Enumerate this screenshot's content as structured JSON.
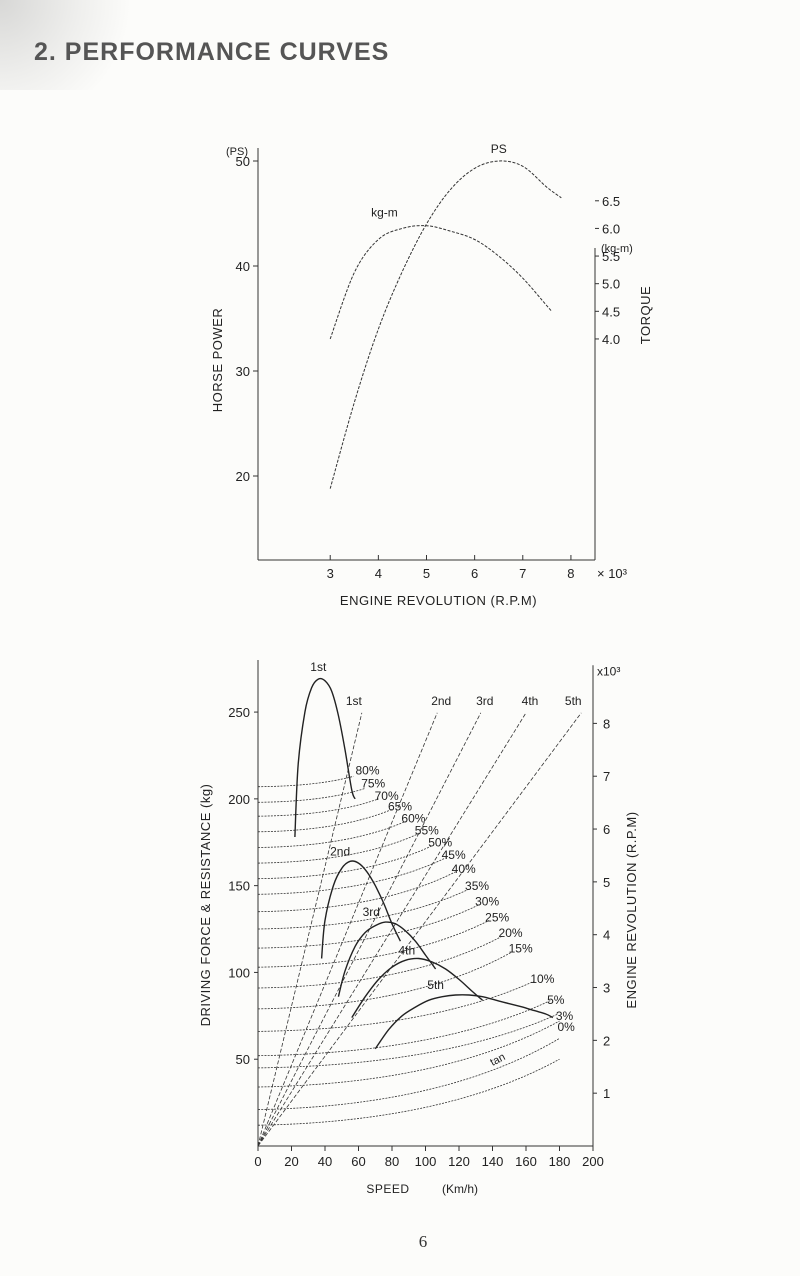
{
  "page": {
    "title": "2. PERFORMANCE CURVES",
    "page_number": "6"
  },
  "chart_data": [
    {
      "type": "line",
      "title": "",
      "xlabel": "ENGINE REVOLUTION (R.P.M)",
      "x_ticks": [
        "3",
        "4",
        "5",
        "6",
        "7",
        "8"
      ],
      "x_multiplier": "× 10³",
      "xlim": [
        1.5,
        8.5
      ],
      "ylabel_left": "HORSE POWER",
      "unit_left": "(PS)",
      "y_ticks_left": [
        "50",
        "40",
        "30",
        "20"
      ],
      "ylim_left": [
        12,
        52
      ],
      "ylabel_right": "TORQUE",
      "unit_right": "(kg-m)",
      "y_ticks_right": [
        "6.5",
        "6.0",
        "5.5",
        "5.0",
        "4.5",
        "4.0"
      ],
      "ylim_right": [
        0.0,
        7.6
      ],
      "grid": false,
      "series": [
        {
          "name": "PS",
          "axis": "left",
          "x": [
            3.0,
            3.5,
            4.0,
            4.5,
            5.0,
            5.5,
            6.0,
            6.5,
            7.0,
            7.5,
            7.8
          ],
          "y": [
            18.8,
            27.0,
            34.0,
            39.5,
            44.0,
            47.3,
            49.3,
            50.0,
            49.5,
            47.5,
            46.5
          ]
        },
        {
          "name": "kg-m",
          "axis": "right",
          "x": [
            3.0,
            3.5,
            4.0,
            4.5,
            5.0,
            5.5,
            6.0,
            6.5,
            7.0,
            7.5,
            7.6
          ],
          "y": [
            4.0,
            5.2,
            5.8,
            6.0,
            6.05,
            5.95,
            5.8,
            5.5,
            5.1,
            4.6,
            4.5
          ]
        }
      ]
    },
    {
      "type": "line",
      "title": "",
      "xlabel": "SPEED",
      "xunit": "(Km/h)",
      "x_ticks": [
        "0",
        "20",
        "40",
        "60",
        "80",
        "100",
        "120",
        "140",
        "160",
        "180",
        "200"
      ],
      "xlim": [
        0,
        200
      ],
      "ylabel_left": "DRIVING FORCE & RESISTANCE (kg)",
      "y_ticks_left": [
        "50",
        "100",
        "150",
        "200",
        "250"
      ],
      "ylim_left": [
        0,
        280
      ],
      "ylabel_right": "ENGINE REVOLUTION (R.P.M)",
      "y_ticks_right": [
        "1",
        "2",
        "3",
        "4",
        "5",
        "6",
        "7",
        "8"
      ],
      "right_multiplier": "x10³",
      "ylim_right": [
        0,
        9.2
      ],
      "grid": false,
      "driving_force_curves": [
        {
          "name": "1st",
          "x": [
            22,
            24,
            28,
            32,
            36,
            40,
            44,
            48,
            52,
            56,
            58
          ],
          "y": [
            178,
            220,
            250,
            264,
            269,
            268,
            262,
            248,
            228,
            205,
            200
          ]
        },
        {
          "name": "2nd",
          "x": [
            38,
            40,
            45,
            50,
            55,
            60,
            65,
            70,
            75,
            80,
            85
          ],
          "y": [
            108,
            130,
            150,
            160,
            164,
            163,
            158,
            150,
            140,
            128,
            118
          ]
        },
        {
          "name": "3rd",
          "x": [
            48,
            52,
            58,
            64,
            70,
            76,
            82,
            88,
            94,
            100,
            106
          ],
          "y": [
            86,
            101,
            115,
            123,
            127,
            129,
            128,
            124,
            118,
            110,
            102
          ]
        },
        {
          "name": "4th",
          "x": [
            56,
            64,
            72,
            80,
            88,
            96,
            104,
            112,
            120,
            128,
            134
          ],
          "y": [
            74,
            86,
            96,
            103,
            107,
            108,
            106,
            102,
            96,
            89,
            84
          ]
        },
        {
          "name": "5th",
          "x": [
            70,
            78,
            86,
            94,
            102,
            110,
            118,
            126,
            134,
            142,
            150,
            158,
            165,
            172,
            176
          ],
          "y": [
            56,
            67,
            75,
            80,
            84,
            86,
            87,
            87,
            86,
            84,
            82,
            80,
            78,
            76,
            74
          ]
        }
      ],
      "resistance_curves": [
        {
          "grade": "80%",
          "y0": 207,
          "x_end": 57,
          "y_end": 213
        },
        {
          "grade": "75%",
          "y0": 198,
          "x_end": 64,
          "y_end": 206
        },
        {
          "grade": "70%",
          "y0": 190,
          "x_end": 72,
          "y_end": 200
        },
        {
          "grade": "65%",
          "y0": 181,
          "x_end": 80,
          "y_end": 194
        },
        {
          "grade": "60%",
          "y0": 172,
          "x_end": 88,
          "y_end": 187
        },
        {
          "grade": "55%",
          "y0": 163,
          "x_end": 96,
          "y_end": 180
        },
        {
          "grade": "50%",
          "y0": 154,
          "x_end": 104,
          "y_end": 173
        },
        {
          "grade": "45%",
          "y0": 145,
          "x_end": 112,
          "y_end": 166
        },
        {
          "grade": "40%",
          "y0": 135,
          "x_end": 118,
          "y_end": 158
        },
        {
          "grade": "35%",
          "y0": 125,
          "x_end": 126,
          "y_end": 148
        },
        {
          "grade": "30%",
          "y0": 114,
          "x_end": 132,
          "y_end": 139
        },
        {
          "grade": "25%",
          "y0": 103,
          "x_end": 138,
          "y_end": 130
        },
        {
          "grade": "20%",
          "y0": 91,
          "x_end": 146,
          "y_end": 121
        },
        {
          "grade": "15%",
          "y0": 79,
          "x_end": 152,
          "y_end": 112
        },
        {
          "grade": "10%",
          "y0": 66,
          "x_end": 165,
          "y_end": 95
        },
        {
          "grade": "5%",
          "y0": 52,
          "x_end": 175,
          "y_end": 84
        },
        {
          "grade": "3%",
          "y0": 45,
          "x_end": 179,
          "y_end": 76
        },
        {
          "grade": "0%",
          "y0": 34,
          "x_end": 180,
          "y_end": 72
        },
        {
          "grade": "",
          "y0": 21,
          "x_end": 180,
          "y_end": 62
        },
        {
          "grade": "",
          "y0": 12,
          "x_end": 180,
          "y_end": 50
        }
      ],
      "tan_label": {
        "text": "tan",
        "x": 140,
        "y": 46
      },
      "gear_rpm_lines": [
        {
          "name": "1st",
          "x_end": 62,
          "rpm_end": 8.2
        },
        {
          "name": "2nd",
          "x_end": 107,
          "rpm_end": 8.2
        },
        {
          "name": "3rd",
          "x_end": 133,
          "rpm_end": 8.2
        },
        {
          "name": "4th",
          "x_end": 160,
          "rpm_end": 8.2
        },
        {
          "name": "5th",
          "x_end": 193,
          "rpm_end": 8.2
        }
      ]
    }
  ]
}
